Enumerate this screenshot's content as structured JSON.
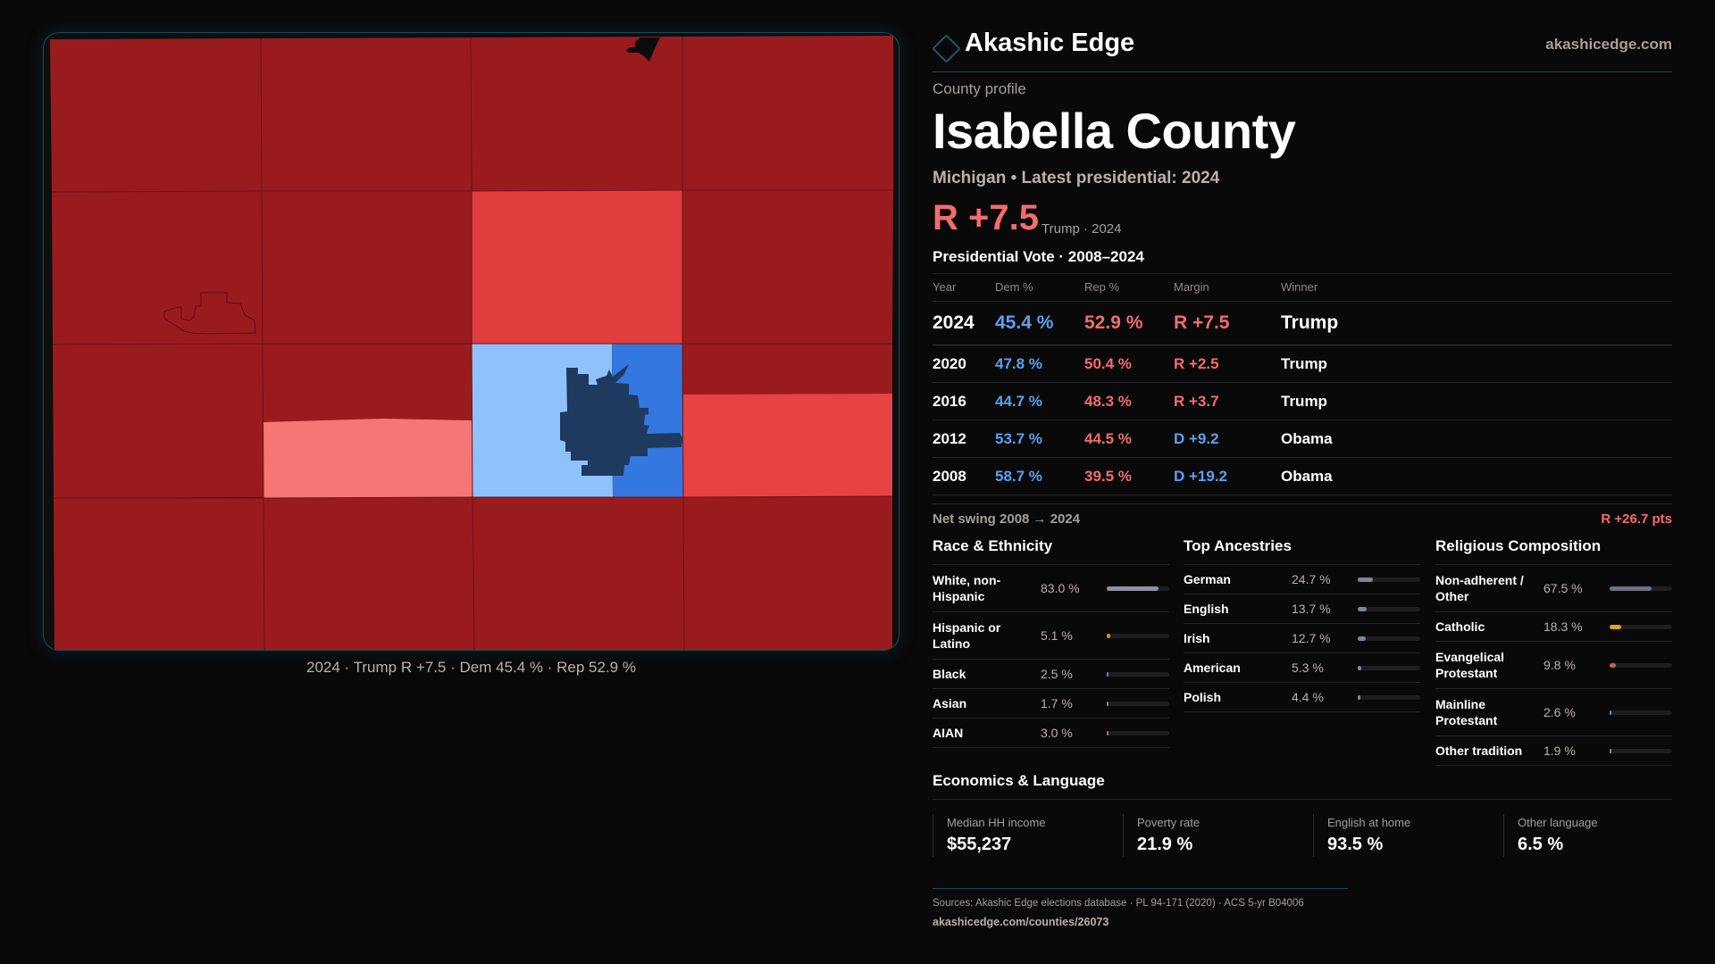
{
  "colors": {
    "background": "#0a090a",
    "accent_teal": "#1e5563",
    "rep": "#f36c6c",
    "dem": "#5ba0f2",
    "map_safe_r": "#9a1b1e",
    "map_likely_r": "#e03e3e",
    "map_lean_r": "#f47676",
    "map_light_d": "#8fc2fc",
    "map_dem": "#3477e0",
    "map_city": "#1e3a5f"
  },
  "map": {
    "caption": "2024 · Trump R +7.5 · Dem 45.4 % · Rep 52.9 %"
  },
  "brand": {
    "logo_icon": "diamond-icon",
    "name": "Akashic Edge",
    "site": "akashicedge.com"
  },
  "profile": {
    "eyebrow": "County profile",
    "title": "Isabella County",
    "subtitle": "Michigan • Latest presidential: 2024",
    "margin": "R +7.5",
    "margin_note": "Trump · 2024"
  },
  "vote": {
    "title": "Presidential Vote · 2008–2024",
    "headers": [
      "Year",
      "Dem %",
      "Rep %",
      "Margin",
      "Winner"
    ],
    "rows": [
      {
        "year": "2024",
        "dem": "45.4 %",
        "rep": "52.9 %",
        "margin": "R +7.5",
        "party": "r",
        "winner": "Trump"
      },
      {
        "year": "2020",
        "dem": "47.8 %",
        "rep": "50.4 %",
        "margin": "R +2.5",
        "party": "r",
        "winner": "Trump"
      },
      {
        "year": "2016",
        "dem": "44.7 %",
        "rep": "48.3 %",
        "margin": "R +3.7",
        "party": "r",
        "winner": "Trump"
      },
      {
        "year": "2012",
        "dem": "53.7 %",
        "rep": "44.5 %",
        "margin": "D +9.2",
        "party": "d",
        "winner": "Obama"
      },
      {
        "year": "2008",
        "dem": "58.7 %",
        "rep": "39.5 %",
        "margin": "D +19.2",
        "party": "d",
        "winner": "Obama"
      }
    ],
    "swing_label": "Net swing 2008 → 2024",
    "swing_value": "R +26.7 pts"
  },
  "race": {
    "title": "Race & Ethnicity",
    "items": [
      {
        "label": "White, non-Hispanic",
        "value": "83.0 %",
        "pct": 83.0,
        "color": "#8a94a6"
      },
      {
        "label": "Hispanic or Latino",
        "value": "5.1 %",
        "pct": 5.1,
        "color": "#e08a1a"
      },
      {
        "label": "Black",
        "value": "2.5 %",
        "pct": 2.5,
        "color": "#8a70d6"
      },
      {
        "label": "Asian",
        "value": "1.7 %",
        "pct": 1.7,
        "color": "#2fb57a"
      },
      {
        "label": "AIAN",
        "value": "3.0 %",
        "pct": 3.0,
        "color": "#c9711a"
      }
    ]
  },
  "ancestry": {
    "title": "Top Ancestries",
    "items": [
      {
        "label": "German",
        "value": "24.7 %",
        "pct": 24.7,
        "color": "#7d8799"
      },
      {
        "label": "English",
        "value": "13.7 %",
        "pct": 13.7,
        "color": "#7d8799"
      },
      {
        "label": "Irish",
        "value": "12.7 %",
        "pct": 12.7,
        "color": "#7d8799"
      },
      {
        "label": "American",
        "value": "5.3 %",
        "pct": 5.3,
        "color": "#7d8799"
      },
      {
        "label": "Polish",
        "value": "4.4 %",
        "pct": 4.4,
        "color": "#7d8799"
      }
    ]
  },
  "religion": {
    "title": "Religious Composition",
    "items": [
      {
        "label": "Non-adherent / Other",
        "value": "67.5 %",
        "pct": 67.5,
        "color": "#6b7280"
      },
      {
        "label": "Catholic",
        "value": "18.3 %",
        "pct": 18.3,
        "color": "#d9a521"
      },
      {
        "label": "Evangelical Protestant",
        "value": "9.8 %",
        "pct": 9.8,
        "color": "#e05555"
      },
      {
        "label": "Mainline Protestant",
        "value": "2.6 %",
        "pct": 2.6,
        "color": "#4a8ae6"
      },
      {
        "label": "Other tradition",
        "value": "1.9 %",
        "pct": 1.9,
        "color": "#8a8a8a"
      }
    ]
  },
  "economics": {
    "title": "Economics & Language",
    "cards": [
      {
        "label": "Median HH income",
        "value": "$55,237"
      },
      {
        "label": "Poverty rate",
        "value": "21.9 %"
      },
      {
        "label": "English at home",
        "value": "93.5 %"
      },
      {
        "label": "Other language",
        "value": "6.5 %"
      }
    ]
  },
  "footer": {
    "sources": "Sources: Akashic Edge elections database · PL 94-171 (2020) · ACS 5-yr B04006",
    "url": "akashicedge.com/counties/26073"
  }
}
